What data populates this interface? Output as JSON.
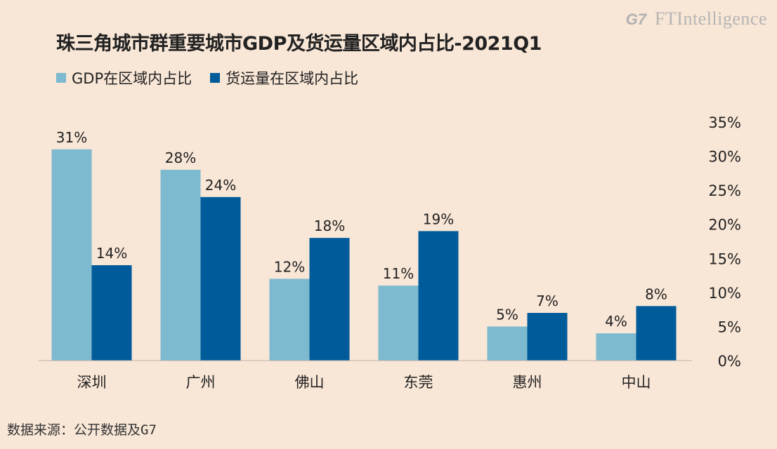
{
  "title": "珠三角城市群重要城市GDP及货运量区域内占比-2021Q1",
  "logo": {
    "g7": "G7",
    "ft": "FTIntelligence"
  },
  "source": "数据来源：公开数据及G7",
  "colors": {
    "gdp": "#7db9cf",
    "freight": "#005b9a",
    "background": "#f8e6d6"
  },
  "chart_data": {
    "type": "bar",
    "title": "珠三角城市群重要城市GDP及货运量区域内占比-2021Q1",
    "categories": [
      "深圳",
      "广州",
      "佛山",
      "东莞",
      "惠州",
      "中山"
    ],
    "series": [
      {
        "name": "GDP在区域内占比",
        "values": [
          31,
          28,
          12,
          11,
          5,
          4
        ],
        "labels": [
          "31%",
          "28%",
          "12%",
          "11%",
          "5%",
          "4%"
        ],
        "color": "#7db9cf"
      },
      {
        "name": "货运量在区域内占比",
        "values": [
          14,
          24,
          18,
          19,
          7,
          8
        ],
        "labels": [
          "14%",
          "24%",
          "18%",
          "19%",
          "7%",
          "8%"
        ],
        "color": "#005b9a"
      }
    ],
    "ylim": [
      0,
      35
    ],
    "yticks": [
      "0%",
      "5%",
      "10%",
      "15%",
      "20%",
      "25%",
      "30%",
      "35%"
    ],
    "yaxis_side": "right",
    "legend_position": "top-left",
    "grid": false
  }
}
